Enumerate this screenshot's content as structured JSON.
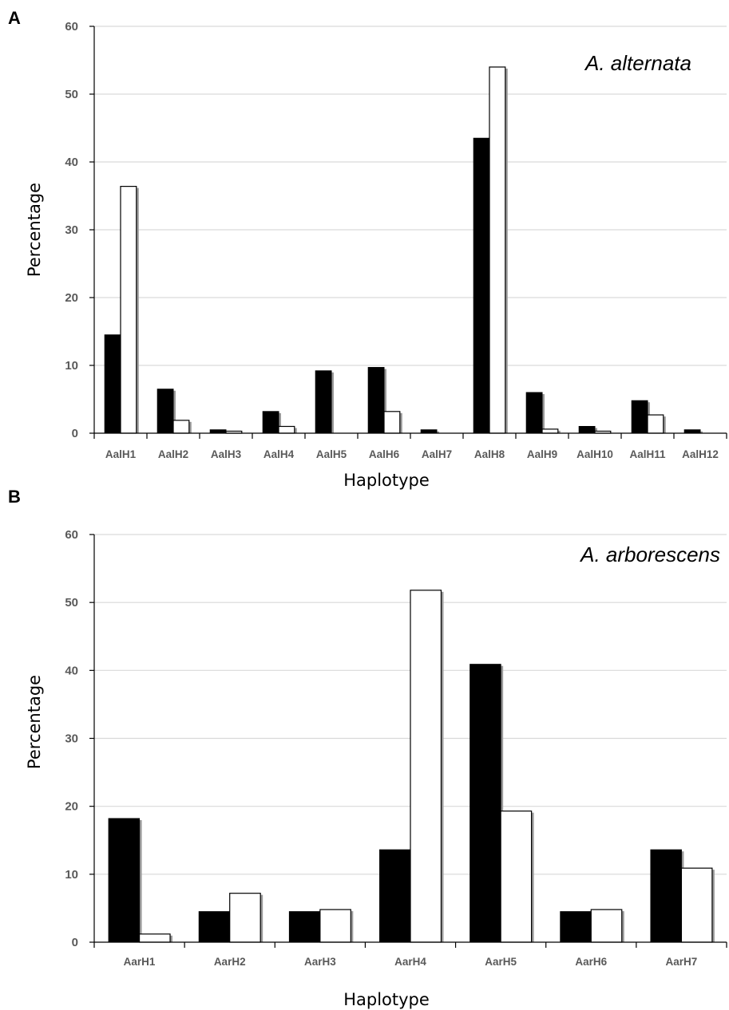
{
  "chart_data": [
    {
      "panel": "A",
      "type": "bar",
      "annotation": "A. alternata",
      "xlabel": "Haplotype",
      "ylabel": "Percentage",
      "ylim": [
        0,
        60
      ],
      "yticks": [
        0,
        10,
        20,
        30,
        40,
        50,
        60
      ],
      "grid": true,
      "categories": [
        "AalH1",
        "AalH2",
        "AalH3",
        "AalH4",
        "AalH5",
        "AalH6",
        "AalH7",
        "AalH8",
        "AalH9",
        "AalH10",
        "AalH11",
        "AalH12"
      ],
      "series": [
        {
          "color": "#000000",
          "values": [
            14.5,
            6.5,
            0.5,
            3.2,
            9.2,
            9.7,
            0.5,
            43.5,
            6.0,
            1.0,
            4.8,
            0.5
          ]
        },
        {
          "color": "#ffffff",
          "values": [
            36.4,
            1.9,
            0.3,
            1.0,
            0.0,
            3.2,
            0.0,
            54.0,
            0.6,
            0.3,
            2.7,
            0.0
          ]
        }
      ]
    },
    {
      "panel": "B",
      "type": "bar",
      "annotation": "A. arborescens",
      "xlabel": "Haplotype",
      "ylabel": "Percentage",
      "ylim": [
        0,
        60
      ],
      "yticks": [
        0,
        10,
        20,
        30,
        40,
        50,
        60
      ],
      "grid": true,
      "categories": [
        "AarH1",
        "AarH2",
        "AarH3",
        "AarH4",
        "AarH5",
        "AarH6",
        "AarH7"
      ],
      "series": [
        {
          "color": "#000000",
          "values": [
            18.2,
            4.5,
            4.5,
            13.6,
            40.9,
            4.5,
            13.6
          ]
        },
        {
          "color": "#ffffff",
          "values": [
            1.2,
            7.2,
            4.8,
            51.8,
            19.3,
            4.8,
            10.9
          ]
        }
      ]
    }
  ]
}
